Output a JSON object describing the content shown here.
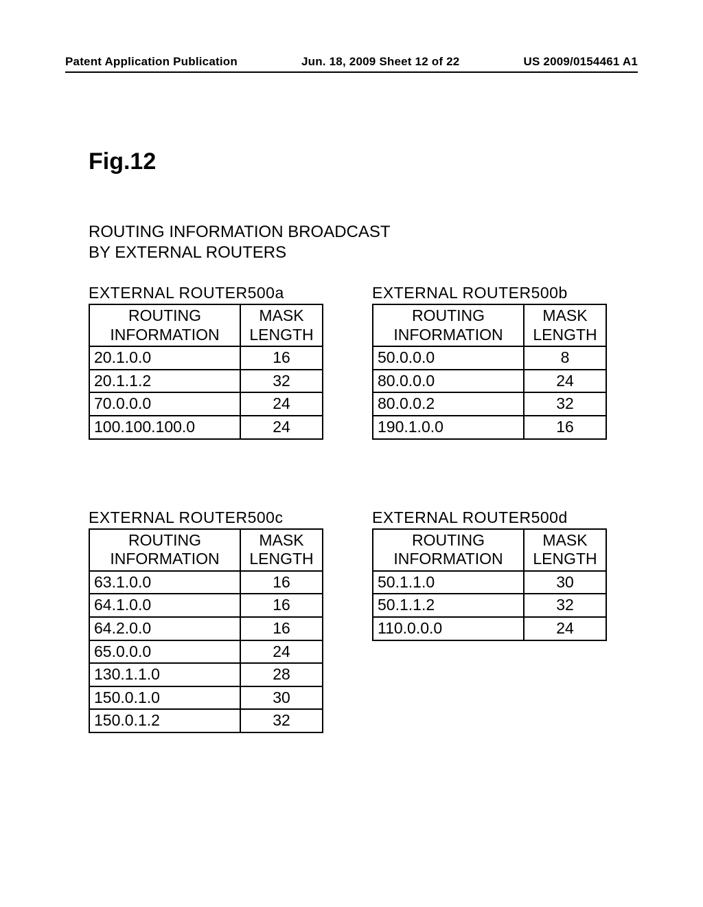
{
  "header": {
    "left": "Patent Application Publication",
    "center": "Jun. 18, 2009 Sheet 12 of 22",
    "right": "US 2009/0154461 A1"
  },
  "figure_label": "Fig.12",
  "title_line1": "ROUTING INFORMATION BROADCAST",
  "title_line2": "BY EXTERNAL ROUTERS",
  "col_header_route_1": "ROUTING",
  "col_header_route_2": "INFORMATION",
  "col_header_mask_1": "MASK",
  "col_header_mask_2": "LENGTH",
  "tables": [
    {
      "caption": "EXTERNAL ROUTER500a",
      "rows": [
        {
          "route": "20.1.0.0",
          "mask": "16"
        },
        {
          "route": "20.1.1.2",
          "mask": "32"
        },
        {
          "route": "70.0.0.0",
          "mask": "24"
        },
        {
          "route": "100.100.100.0",
          "mask": "24"
        }
      ]
    },
    {
      "caption": "EXTERNAL ROUTER500b",
      "rows": [
        {
          "route": "50.0.0.0",
          "mask": "8"
        },
        {
          "route": "80.0.0.0",
          "mask": "24"
        },
        {
          "route": "80.0.0.2",
          "mask": "32"
        },
        {
          "route": "190.1.0.0",
          "mask": "16"
        }
      ]
    },
    {
      "caption": "EXTERNAL ROUTER500c",
      "rows": [
        {
          "route": "63.1.0.0",
          "mask": "16"
        },
        {
          "route": "64.1.0.0",
          "mask": "16"
        },
        {
          "route": "64.2.0.0",
          "mask": "16"
        },
        {
          "route": "65.0.0.0",
          "mask": "24"
        },
        {
          "route": "130.1.1.0",
          "mask": "28"
        },
        {
          "route": "150.0.1.0",
          "mask": "30"
        },
        {
          "route": "150.0.1.2",
          "mask": "32"
        }
      ]
    },
    {
      "caption": "EXTERNAL ROUTER500d",
      "rows": [
        {
          "route": "50.1.1.0",
          "mask": "30"
        },
        {
          "route": "50.1.1.2",
          "mask": "32"
        },
        {
          "route": "110.0.0.0",
          "mask": "24"
        }
      ]
    }
  ]
}
